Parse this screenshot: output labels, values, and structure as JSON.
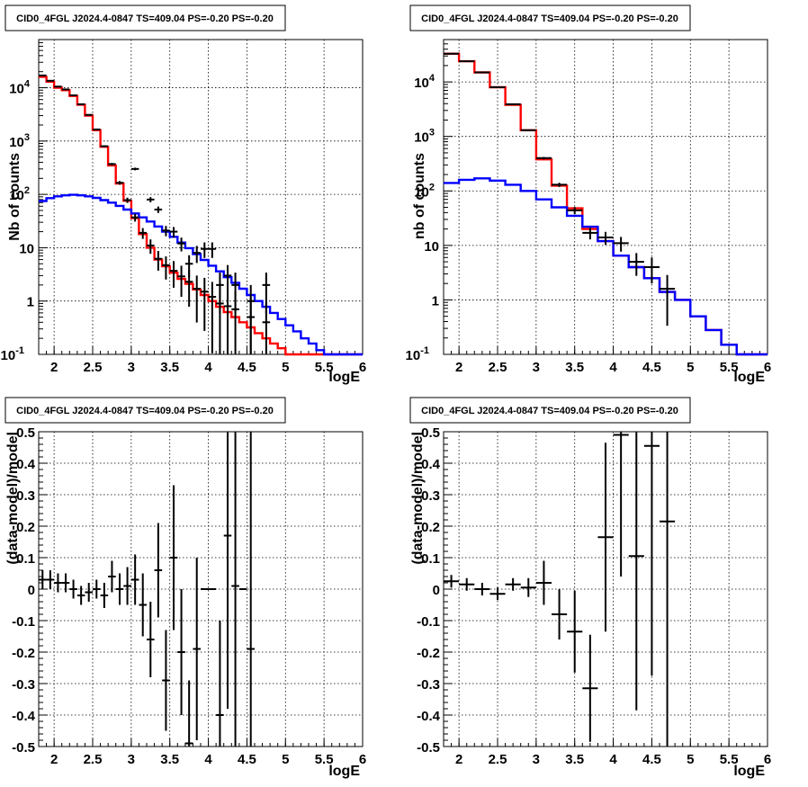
{
  "colors": {
    "data": "#000000",
    "total_model": "#ff0000",
    "source_model": "#0000ff",
    "grid": "#000000",
    "frame": "#000000"
  },
  "chart_data": [
    {
      "type": "line",
      "title": "CID0_4FGL J2024.4-0847 TS=409.04 PS=-0.20 PS=-0.20",
      "xlabel": "logE",
      "ylabel": "Nb of counts",
      "xlim": [
        1.8,
        6
      ],
      "ylim": [
        0.1,
        80000
      ],
      "ylog": true,
      "grid": true,
      "xticks": [
        "2",
        "2.5",
        "3",
        "3.5",
        "4",
        "4.5",
        "5",
        "5.5",
        "6"
      ],
      "yticks": [
        "10^-1",
        "1",
        "10",
        "10^2",
        "10^3",
        "10^4"
      ],
      "series": [
        {
          "kind": "step",
          "color": "red",
          "edges": [
            1.8,
            1.9,
            2.0,
            2.1,
            2.2,
            2.3,
            2.4,
            2.5,
            2.6,
            2.7,
            2.8,
            2.9,
            3.0,
            3.1,
            3.2,
            3.3,
            3.4,
            3.5,
            3.6,
            3.7,
            3.8,
            3.9,
            4.0,
            4.1,
            4.2,
            4.3,
            4.4,
            4.5,
            4.6,
            4.7,
            4.8,
            4.9,
            5.0,
            5.1,
            5.2,
            5.3,
            5.4,
            5.5,
            5.6,
            5.7,
            5.8,
            5.9,
            6.0
          ],
          "values": [
            16000,
            13000,
            10000,
            9000,
            7000,
            4800,
            3000,
            1600,
            780,
            350,
            160,
            76,
            36,
            18,
            10,
            6,
            4.5,
            3.4,
            2.6,
            2.1,
            1.65,
            1.3,
            1.0,
            0.78,
            0.62,
            0.5,
            0.4,
            0.32,
            0.25,
            0.2,
            0.16,
            0.13,
            0.1,
            0.1,
            0.1,
            0.1,
            0.1,
            0.1,
            0.1,
            0.1,
            0.1,
            0.1
          ]
        },
        {
          "kind": "step",
          "color": "blue",
          "edges": [
            1.8,
            1.9,
            2.0,
            2.1,
            2.2,
            2.3,
            2.4,
            2.5,
            2.6,
            2.7,
            2.8,
            2.9,
            3.0,
            3.1,
            3.2,
            3.3,
            3.4,
            3.5,
            3.6,
            3.7,
            3.8,
            3.9,
            4.0,
            4.1,
            4.2,
            4.3,
            4.4,
            4.5,
            4.6,
            4.7,
            4.8,
            4.9,
            5.0,
            5.1,
            5.2,
            5.3,
            5.4,
            5.5,
            5.6,
            5.7,
            5.8,
            5.9,
            6.0
          ],
          "values": [
            75,
            85,
            92,
            96,
            98,
            96,
            92,
            86,
            78,
            70,
            61,
            52,
            44,
            37,
            31,
            25,
            20,
            16,
            12.5,
            9.8,
            7.6,
            5.9,
            4.6,
            3.6,
            2.8,
            2.2,
            1.7,
            1.3,
            1.0,
            0.78,
            0.6,
            0.46,
            0.35,
            0.27,
            0.2,
            0.16,
            0.12,
            0.1,
            0.1,
            0.1,
            0.1,
            0.1
          ]
        },
        {
          "kind": "points",
          "color": "black",
          "x": [
            1.85,
            1.95,
            2.05,
            2.15,
            2.25,
            2.35,
            2.45,
            2.55,
            2.65,
            2.75,
            2.85,
            2.95,
            3.05,
            3.15,
            3.25,
            3.35,
            3.45,
            3.55,
            3.65,
            3.75,
            3.85,
            3.95,
            4.05,
            4.15,
            4.25,
            4.35,
            4.55,
            4.75
          ],
          "y": [
            17000,
            13500,
            10500,
            9300,
            7200,
            4900,
            3100,
            1650,
            800,
            370,
            165,
            78,
            37,
            19,
            11,
            6.2,
            4.7,
            3.7,
            2.9,
            2.3,
            1.7,
            1.5,
            1.2,
            0.9,
            0.8,
            0.7,
            0.5,
            0.4
          ],
          "xerr": 0.05
        },
        {
          "kind": "points",
          "color": "black",
          "x": [
            3.05,
            3.25,
            3.35,
            3.45,
            3.55,
            3.65,
            3.75,
            3.85,
            3.95,
            4.05,
            4.15,
            4.25,
            4.35,
            4.55,
            4.75
          ],
          "y": [
            300,
            80,
            52,
            21,
            20,
            12,
            5,
            8,
            9.5,
            9.5,
            2,
            3,
            2,
            1,
            2
          ],
          "xerr": 0.05
        }
      ]
    },
    {
      "type": "line",
      "title": "CID0_4FGL J2024.4-0847 TS=409.04 PS=-0.20 PS=-0.20",
      "xlabel": "logE",
      "ylabel": "nb of counts",
      "xlim": [
        1.8,
        6
      ],
      "ylim": [
        0.1,
        60000
      ],
      "ylog": true,
      "grid": true,
      "xticks": [
        "2",
        "2.5",
        "3",
        "3.5",
        "4",
        "4.5",
        "5",
        "5.5",
        "6"
      ],
      "yticks": [
        "10^-1",
        "1",
        "10",
        "10^2",
        "10^3",
        "10^4"
      ],
      "series": [
        {
          "kind": "step",
          "color": "red",
          "edges": [
            1.8,
            2.0,
            2.2,
            2.4,
            2.6,
            2.8,
            3.0,
            3.2,
            3.4,
            3.6,
            3.8,
            4.0,
            4.2,
            4.4,
            4.6,
            4.8,
            5.0,
            5.2,
            5.4,
            5.6,
            5.8,
            6.0
          ],
          "values": [
            33000,
            24000,
            15000,
            8000,
            3800,
            1300,
            380,
            125,
            48,
            20,
            12,
            6.5,
            4,
            2.5,
            1.4,
            1.0,
            0.5,
            0.28,
            0.15,
            0.1,
            0.1
          ]
        },
        {
          "kind": "step",
          "color": "blue",
          "edges": [
            1.8,
            2.0,
            2.2,
            2.4,
            2.6,
            2.8,
            3.0,
            3.2,
            3.4,
            3.6,
            3.8,
            4.0,
            4.2,
            4.4,
            4.6,
            4.8,
            5.0,
            5.2,
            5.4,
            5.6,
            5.8,
            6.0
          ],
          "values": [
            140,
            160,
            170,
            155,
            130,
            100,
            70,
            50,
            35,
            22,
            12,
            6.5,
            4,
            2.5,
            1.4,
            1.0,
            0.5,
            0.28,
            0.15,
            0.1,
            0.1
          ]
        },
        {
          "kind": "points",
          "color": "black",
          "x": [
            1.9,
            2.1,
            2.3,
            2.5,
            2.7,
            2.9,
            3.1,
            3.3,
            3.5,
            3.7,
            3.9,
            4.1,
            4.3,
            4.5,
            4.7
          ],
          "y": [
            33000,
            24000,
            15000,
            8000,
            3900,
            1300,
            400,
            130,
            44,
            17,
            14,
            11,
            5,
            4,
            1.6
          ],
          "xerr": 0.1
        }
      ]
    },
    {
      "type": "scatter",
      "title": "CID0_4FGL J2024.4-0847 TS=409.04 PS=-0.20 PS=-0.20",
      "xlabel": "logE",
      "ylabel": "(data-model)/model",
      "xlim": [
        1.8,
        6
      ],
      "ylim": [
        -0.5,
        0.5
      ],
      "grid": true,
      "xticks": [
        "2",
        "2.5",
        "3",
        "3.5",
        "4",
        "4.5",
        "5",
        "5.5",
        "6"
      ],
      "yticks": [
        "-0.5",
        "-0.4",
        "-0.3",
        "-0.2",
        "-0.1",
        "0",
        "0.1",
        "0.2",
        "0.3",
        "0.4",
        "0.5"
      ],
      "series": [
        {
          "kind": "points",
          "color": "black",
          "xerr": 0.05,
          "x": [
            1.85,
            1.95,
            2.05,
            2.15,
            2.25,
            2.35,
            2.45,
            2.55,
            2.65,
            2.75,
            2.85,
            2.95,
            3.05,
            3.15,
            3.25,
            3.35,
            3.45,
            3.55,
            3.65,
            3.75,
            3.85,
            3.95,
            4.05,
            4.15,
            4.25,
            4.35,
            4.45,
            4.55
          ],
          "y": [
            0.03,
            0.03,
            0.02,
            0.02,
            0.0,
            -0.02,
            -0.01,
            0.0,
            -0.02,
            0.04,
            0.0,
            0.01,
            0.03,
            -0.05,
            -0.16,
            0.06,
            -0.29,
            0.1,
            -0.2,
            -0.49,
            -0.19,
            0.0,
            0.0,
            -0.4,
            0.17,
            0.01,
            0.0,
            -0.19
          ],
          "err": [
            0.03,
            0.03,
            0.03,
            0.03,
            0.03,
            0.03,
            0.03,
            0.03,
            0.04,
            0.05,
            0.05,
            0.06,
            0.08,
            0.1,
            0.12,
            0.15,
            0.16,
            0.23,
            0.2,
            0.2,
            0.29,
            0.0,
            0.0,
            0.3,
            0.55,
            0.6,
            0.0,
            0.7
          ]
        }
      ]
    },
    {
      "type": "scatter",
      "title": "CID0_4FGL J2024.4-0847 TS=409.04 PS=-0.20 PS=-0.20",
      "xlabel": "logE",
      "ylabel": "(data-model)/model",
      "xlim": [
        1.8,
        6
      ],
      "ylim": [
        -0.5,
        0.5
      ],
      "grid": true,
      "xticks": [
        "2",
        "2.5",
        "3",
        "3.5",
        "4",
        "4.5",
        "5",
        "5.5",
        "6"
      ],
      "yticks": [
        "-0.5",
        "-0.4",
        "-0.3",
        "-0.2",
        "-0.1",
        "0",
        "0.1",
        "0.2",
        "0.3",
        "0.4",
        "0.5"
      ],
      "series": [
        {
          "kind": "points",
          "color": "black",
          "xerr": 0.1,
          "x": [
            1.9,
            2.1,
            2.3,
            2.5,
            2.7,
            2.9,
            3.1,
            3.3,
            3.5,
            3.7,
            3.9,
            4.1,
            4.3,
            4.5,
            4.7
          ],
          "y": [
            0.025,
            0.015,
            0.0,
            -0.015,
            0.015,
            0.005,
            0.02,
            -0.08,
            -0.135,
            -0.315,
            0.165,
            0.49,
            0.105,
            0.455,
            0.215
          ],
          "err": [
            0.02,
            0.02,
            0.02,
            0.02,
            0.02,
            0.03,
            0.07,
            0.08,
            0.13,
            0.17,
            0.3,
            0.45,
            0.49,
            0.73,
            0.8
          ]
        }
      ]
    }
  ]
}
